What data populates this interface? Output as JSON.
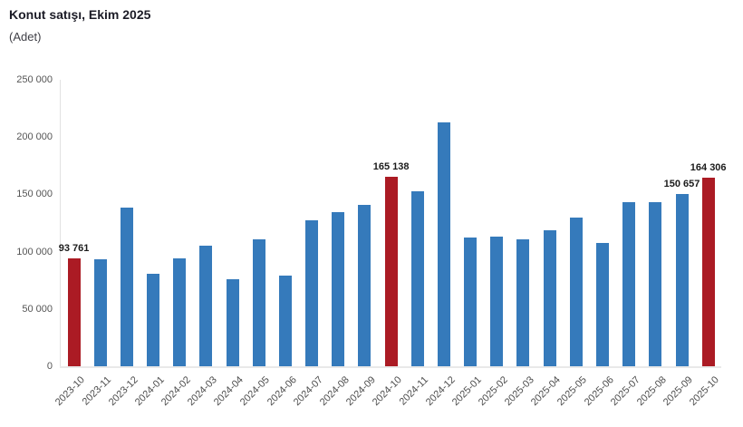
{
  "title": "Konut satışı, Ekim 2025",
  "subtitle": "(Adet)",
  "colors": {
    "bar_blue": "#357abb",
    "bar_highlight_red": "#ab1b24",
    "axis_line": "#e2e2e2",
    "tick_text": "#4d4d4d",
    "title_text": "#1b1b26",
    "value_label_text": "#1b1b1b",
    "background": "#ffffff"
  },
  "chart_data": {
    "type": "bar",
    "title": "Konut satışı, Ekim 2025",
    "ylabel": "(Adet)",
    "xlabel": "",
    "grid": false,
    "legend": false,
    "ylim": [
      0,
      250000
    ],
    "yticks": [
      0,
      50000,
      100000,
      150000,
      200000,
      250000
    ],
    "ytick_labels": [
      "0",
      "50 000",
      "100 000",
      "150 000",
      "200 000",
      "250 000"
    ],
    "categories": [
      "2023-10",
      "2023-11",
      "2023-12",
      "2024-01",
      "2024-02",
      "2024-03",
      "2024-04",
      "2024-05",
      "2024-06",
      "2024-07",
      "2024-08",
      "2024-09",
      "2024-10",
      "2024-11",
      "2024-12",
      "2025-01",
      "2025-02",
      "2025-03",
      "2025-04",
      "2025-05",
      "2025-06",
      "2025-07",
      "2025-08",
      "2025-09",
      "2025-10"
    ],
    "values": [
      93761,
      93178,
      138577,
      80308,
      93902,
      105394,
      75569,
      110588,
      79313,
      127088,
      134155,
      140919,
      165138,
      153014,
      212637,
      112173,
      112818,
      110795,
      118359,
      130025,
      107723,
      142858,
      143319,
      150657,
      164306
    ],
    "highlighted_categories": [
      "2023-10",
      "2024-10",
      "2025-10"
    ],
    "data_labels": {
      "2023-10": "93 761",
      "2024-10": "165 138",
      "2025-09": "150 657",
      "2025-10": "164 306"
    }
  }
}
